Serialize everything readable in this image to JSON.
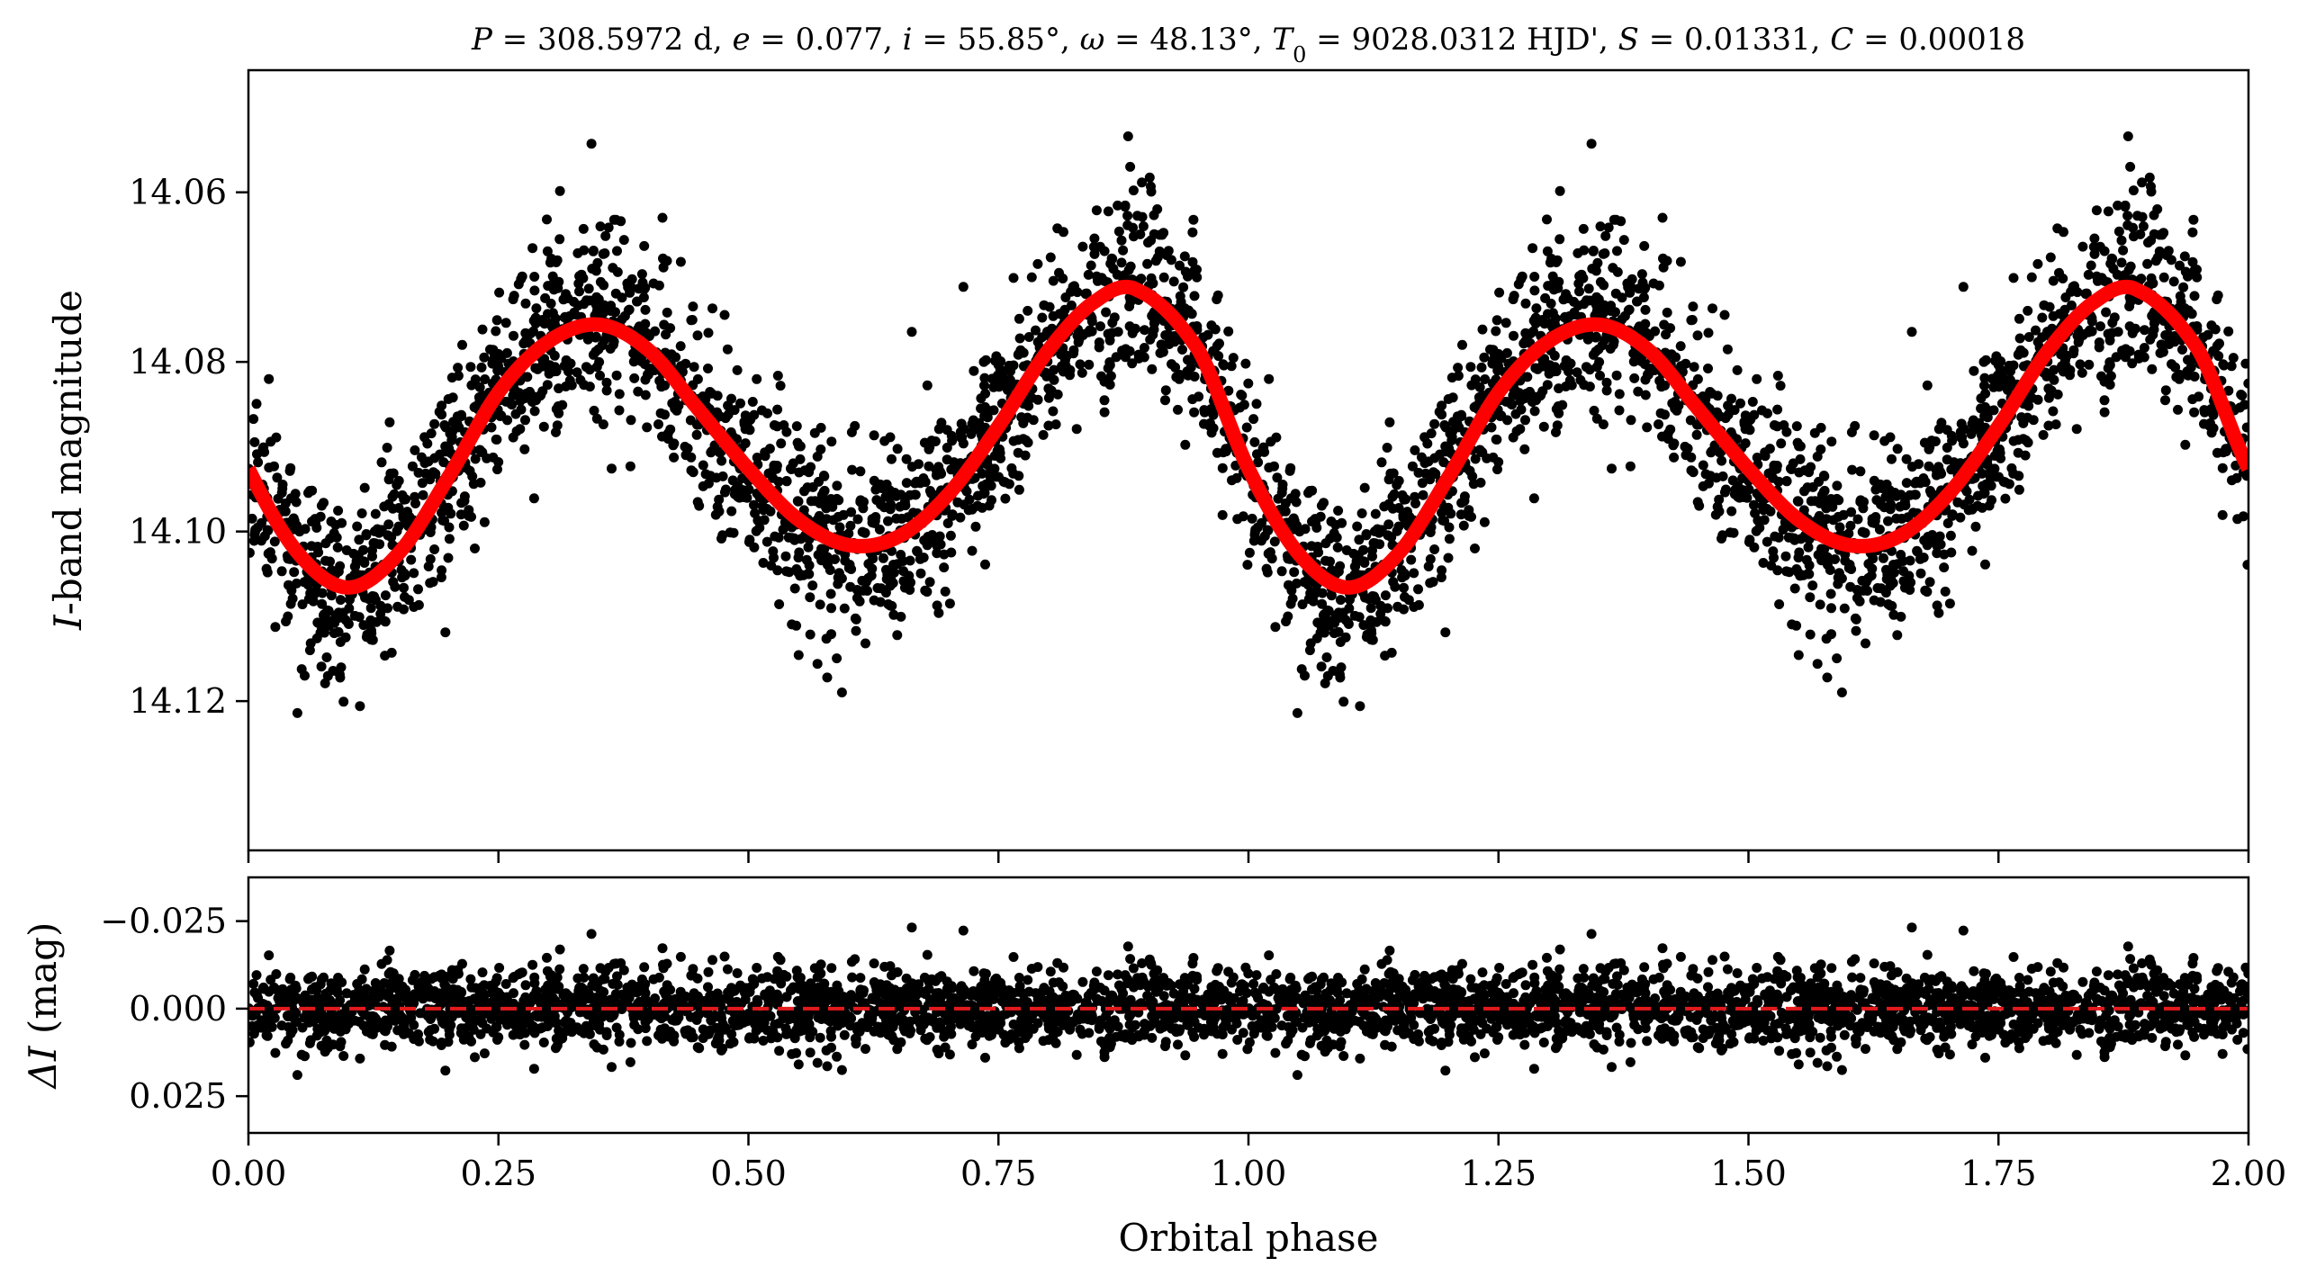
{
  "chart_data": [
    {
      "type": "scatter",
      "panel": "light-curve",
      "title_parts": {
        "P_sym": "P",
        "P_val": " = 308.5972 d, ",
        "e_sym": "e",
        "e_val": " = 0.077, ",
        "i_sym": "i",
        "i_val": " = 55.85°, ",
        "w_sym": "ω",
        "w_val": " = 48.13°, ",
        "T_sym": "T",
        "T_sub": "0",
        "T_val": " = 9028.0312 HJD', ",
        "S_sym": "S",
        "S_val": " = 0.01331, ",
        "C_sym": "C",
        "C_val": " = 0.00018"
      },
      "ylabel_sym": "I",
      "ylabel_text": "-band magnitude",
      "xlim": [
        0.0,
        2.0
      ],
      "ylim": [
        14.1376,
        14.0456
      ],
      "y_inverted": true,
      "yticks": [
        14.06,
        14.08,
        14.1,
        14.12
      ],
      "ytick_labels": [
        "14.06",
        "14.08",
        "14.10",
        "14.12"
      ],
      "xticks": [
        0,
        0.25,
        0.5,
        0.75,
        1.0,
        1.25,
        1.5,
        1.75,
        2.0
      ],
      "model": {
        "color": "#ff0000",
        "x": [
          0.0,
          0.05,
          0.1,
          0.15,
          0.2,
          0.25,
          0.3,
          0.35,
          0.4,
          0.45,
          0.5,
          0.55,
          0.6,
          0.65,
          0.7,
          0.75,
          0.8,
          0.85,
          0.89,
          0.95,
          1.0
        ],
        "y": [
          14.0926,
          14.1026,
          14.1066,
          14.1026,
          14.0936,
          14.0836,
          14.0776,
          14.0756,
          14.0786,
          14.0856,
          14.0926,
          14.0986,
          14.1016,
          14.1006,
          14.0956,
          14.0876,
          14.0786,
          14.0726,
          14.0716,
          14.0786,
          14.0926
        ]
      },
      "points_color": "#000000",
      "scatter_sigma_mag": 0.0065,
      "n_points_per_cycle": 1900,
      "repeat_cycles": 2
    },
    {
      "type": "scatter",
      "panel": "residuals",
      "ylabel_sym": "ΔI",
      "ylabel_text": " (mag)",
      "xlabel": "Orbital phase",
      "xlim": [
        0.0,
        2.0
      ],
      "ylim": [
        0.0355,
        -0.0375
      ],
      "y_inverted": true,
      "yticks": [
        -0.025,
        0.0,
        0.025
      ],
      "ytick_labels": [
        "−0.025",
        "0.000",
        "0.025"
      ],
      "xticks": [
        0,
        0.25,
        0.5,
        0.75,
        1.0,
        1.25,
        1.5,
        1.75,
        2.0
      ],
      "xtick_labels": [
        "0.00",
        "0.25",
        "0.50",
        "0.75",
        "1.00",
        "1.25",
        "1.50",
        "1.75",
        "2.00"
      ],
      "zero_line": {
        "y": 0.0,
        "color": "#e41a1c",
        "style": "dashed"
      },
      "points_color": "#000000",
      "scatter_sigma_mag": 0.0065
    }
  ]
}
